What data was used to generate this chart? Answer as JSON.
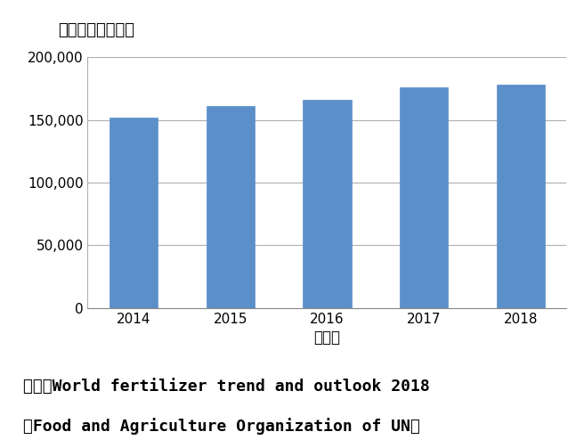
{
  "categories": [
    "2014",
    "2015",
    "2016",
    "2017",
    "2018"
  ],
  "values": [
    152000,
    161000,
    166000,
    176000,
    178000
  ],
  "bar_color": "#5b8fc9",
  "bar_edgecolor": "#5b8fc9",
  "title": "供給量（千トン）",
  "xlabel": "（年）",
  "ylabel": "",
  "ylim": [
    0,
    200000
  ],
  "yticks": [
    0,
    50000,
    100000,
    150000,
    200000
  ],
  "ytick_labels": [
    "0",
    "50,000",
    "100,000",
    "150,000",
    "200,000"
  ],
  "source_line1": "出典：World fertilizer trend and outlook 2018",
  "source_line2": "（Food and Agriculture Organization of UN）",
  "background_color": "#ffffff",
  "grid_color": "#b0b0b0",
  "title_fontsize": 13,
  "tick_fontsize": 11,
  "source_fontsize": 13,
  "xlabel_fontsize": 12
}
